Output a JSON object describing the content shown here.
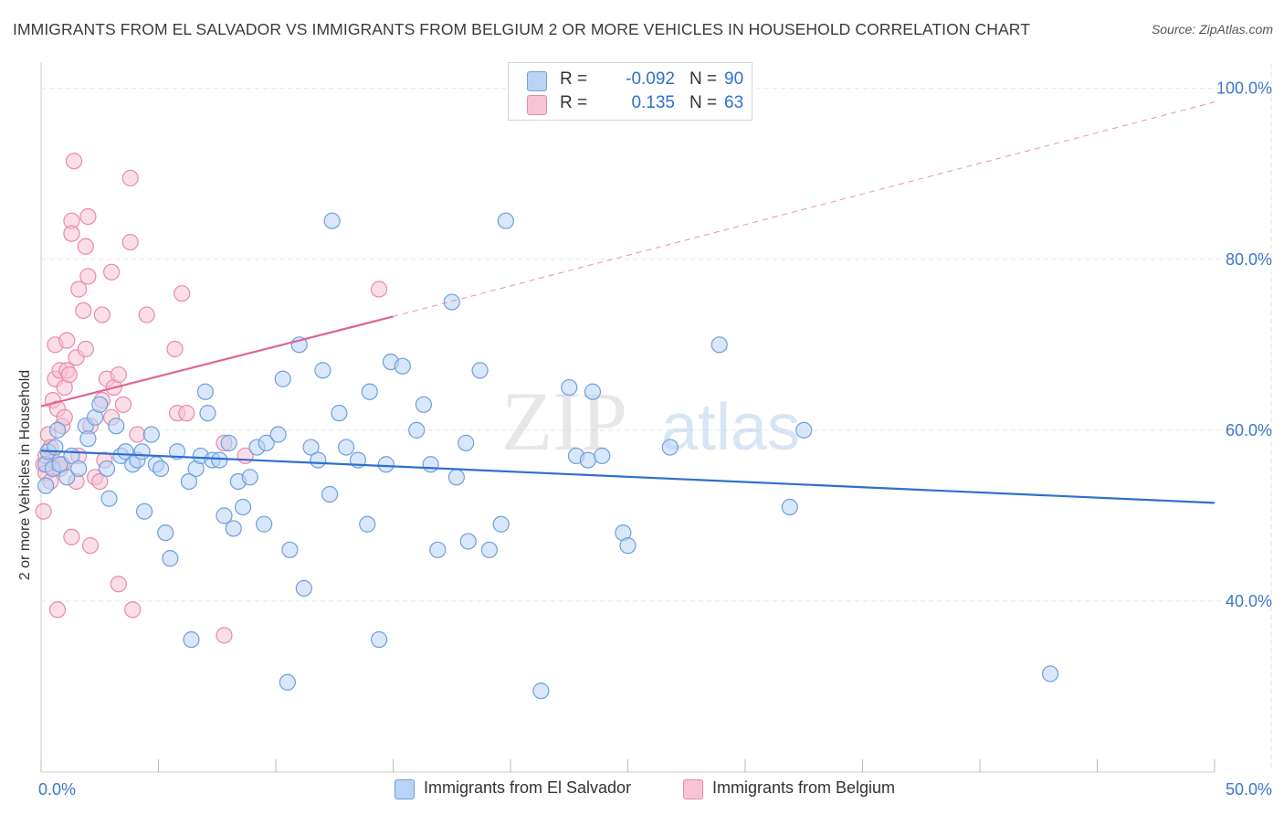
{
  "title": "IMMIGRANTS FROM EL SALVADOR VS IMMIGRANTS FROM BELGIUM 2 OR MORE VEHICLES IN HOUSEHOLD CORRELATION CHART",
  "source": "Source: ZipAtlas.com",
  "watermark": {
    "zip": "ZIP",
    "atlas": "atlas"
  },
  "legend": {
    "series1": {
      "r_label": "R =",
      "r_value": "-0.092",
      "n_label": "N =",
      "n_value": "90"
    },
    "series2": {
      "r_label": "R =",
      "r_value": "0.135",
      "n_label": "N =",
      "n_value": "63"
    }
  },
  "bottom_legend": {
    "series1": "Immigrants from El Salvador",
    "series2": "Immigrants from Belgium"
  },
  "colors": {
    "blue_fill": "#b8d3f5",
    "blue_stroke": "#6f9fdc",
    "blue_line": "#2e6fcf",
    "pink_fill": "#f8c3d4",
    "pink_stroke": "#e98aa9",
    "pink_line": "#e06592",
    "tick_text": "#3d77cc",
    "grid": "#e6e6e6"
  },
  "chart_data": {
    "type": "scatter",
    "title": "IMMIGRANTS FROM EL SALVADOR VS IMMIGRANTS FROM BELGIUM 2 OR MORE VEHICLES IN HOUSEHOLD CORRELATION CHART",
    "xlabel": "",
    "ylabel": "2 or more Vehicles in Household",
    "xlim": [
      0,
      50
    ],
    "ylim": [
      20,
      102
    ],
    "x_tick_labels": {
      "0": "0.0%",
      "50": "50.0%"
    },
    "y_ticks": [
      40,
      60,
      80,
      100
    ],
    "y_tick_labels": [
      "40.0%",
      "60.0%",
      "80.0%",
      "100.0%"
    ],
    "series": [
      {
        "name": "Immigrants from El Salvador",
        "r": -0.092,
        "n": 90,
        "trend": {
          "x": [
            0,
            50
          ],
          "y": [
            57.6,
            51.5
          ],
          "style": "solid"
        },
        "points": [
          [
            0.2,
            53.5
          ],
          [
            0.2,
            56.0
          ],
          [
            0.3,
            57.5
          ],
          [
            0.5,
            55.5
          ],
          [
            0.6,
            58.0
          ],
          [
            0.7,
            60.0
          ],
          [
            0.8,
            56.0
          ],
          [
            1.1,
            54.5
          ],
          [
            1.3,
            57.0
          ],
          [
            1.6,
            55.5
          ],
          [
            1.9,
            60.5
          ],
          [
            2.0,
            59.0
          ],
          [
            2.3,
            61.5
          ],
          [
            2.5,
            63.0
          ],
          [
            2.8,
            55.5
          ],
          [
            2.9,
            52.0
          ],
          [
            3.2,
            60.5
          ],
          [
            3.4,
            57.0
          ],
          [
            3.6,
            57.5
          ],
          [
            3.9,
            56.0
          ],
          [
            4.1,
            56.5
          ],
          [
            4.3,
            57.5
          ],
          [
            4.4,
            50.5
          ],
          [
            4.7,
            59.5
          ],
          [
            4.9,
            56.0
          ],
          [
            5.1,
            55.5
          ],
          [
            5.3,
            48.0
          ],
          [
            5.5,
            45.0
          ],
          [
            5.8,
            57.5
          ],
          [
            6.3,
            54.0
          ],
          [
            6.4,
            35.5
          ],
          [
            6.6,
            55.5
          ],
          [
            6.8,
            57.0
          ],
          [
            7.0,
            64.5
          ],
          [
            7.1,
            62.0
          ],
          [
            7.3,
            56.5
          ],
          [
            7.6,
            56.5
          ],
          [
            7.8,
            50.0
          ],
          [
            8.0,
            58.5
          ],
          [
            8.2,
            48.5
          ],
          [
            8.4,
            54.0
          ],
          [
            8.6,
            51.0
          ],
          [
            8.9,
            54.5
          ],
          [
            9.2,
            58.0
          ],
          [
            9.5,
            49.0
          ],
          [
            9.6,
            58.5
          ],
          [
            10.1,
            59.5
          ],
          [
            10.3,
            66.0
          ],
          [
            10.6,
            46.0
          ],
          [
            10.5,
            30.5
          ],
          [
            11.0,
            70.0
          ],
          [
            11.2,
            41.5
          ],
          [
            11.5,
            58.0
          ],
          [
            11.8,
            56.5
          ],
          [
            12.0,
            67.0
          ],
          [
            12.3,
            52.5
          ],
          [
            12.4,
            84.5
          ],
          [
            12.7,
            62.0
          ],
          [
            13.0,
            58.0
          ],
          [
            13.5,
            56.5
          ],
          [
            13.9,
            49.0
          ],
          [
            14.0,
            64.5
          ],
          [
            14.4,
            35.5
          ],
          [
            14.7,
            56.0
          ],
          [
            14.9,
            68.0
          ],
          [
            15.4,
            67.5
          ],
          [
            16.0,
            60.0
          ],
          [
            16.3,
            63.0
          ],
          [
            16.6,
            56.0
          ],
          [
            16.9,
            46.0
          ],
          [
            17.5,
            75.0
          ],
          [
            17.7,
            54.5
          ],
          [
            18.1,
            58.5
          ],
          [
            18.2,
            47.0
          ],
          [
            18.7,
            67.0
          ],
          [
            19.1,
            46.0
          ],
          [
            19.6,
            49.0
          ],
          [
            19.8,
            84.5
          ],
          [
            21.3,
            29.5
          ],
          [
            22.5,
            65.0
          ],
          [
            22.8,
            57.0
          ],
          [
            23.3,
            56.5
          ],
          [
            23.5,
            64.5
          ],
          [
            23.9,
            57.0
          ],
          [
            24.8,
            48.0
          ],
          [
            25.0,
            46.5
          ],
          [
            26.8,
            58.0
          ],
          [
            28.9,
            70.0
          ],
          [
            31.9,
            51.0
          ],
          [
            32.5,
            60.0
          ],
          [
            43.0,
            31.5
          ]
        ]
      },
      {
        "name": "Immigrants from Belgium",
        "r": 0.135,
        "n": 63,
        "trend": {
          "x": [
            0,
            15
          ],
          "y": [
            62.8,
            73.3
          ],
          "dashed_extension": {
            "x": [
              15,
              50
            ],
            "y": [
              73.3,
              98.4
            ]
          }
        },
        "points": [
          [
            0.1,
            50.5
          ],
          [
            0.1,
            56.0
          ],
          [
            0.2,
            55.0
          ],
          [
            0.3,
            57.5
          ],
          [
            0.3,
            59.5
          ],
          [
            0.4,
            54.0
          ],
          [
            0.5,
            56.5
          ],
          [
            0.5,
            63.5
          ],
          [
            0.6,
            66.0
          ],
          [
            0.6,
            70.0
          ],
          [
            0.7,
            39.0
          ],
          [
            0.7,
            62.5
          ],
          [
            0.8,
            67.0
          ],
          [
            0.8,
            55.5
          ],
          [
            0.9,
            60.5
          ],
          [
            0.9,
            56.0
          ],
          [
            1.0,
            61.5
          ],
          [
            1.0,
            65.0
          ],
          [
            1.1,
            70.5
          ],
          [
            1.1,
            67.0
          ],
          [
            1.2,
            66.5
          ],
          [
            1.3,
            47.5
          ],
          [
            1.3,
            84.5
          ],
          [
            1.3,
            83.0
          ],
          [
            1.4,
            91.5
          ],
          [
            1.5,
            68.5
          ],
          [
            1.5,
            54.0
          ],
          [
            1.6,
            76.5
          ],
          [
            1.6,
            57.0
          ],
          [
            1.8,
            74.0
          ],
          [
            1.9,
            69.5
          ],
          [
            1.9,
            81.5
          ],
          [
            2.0,
            85.0
          ],
          [
            2.0,
            78.0
          ],
          [
            2.1,
            60.5
          ],
          [
            2.1,
            46.5
          ],
          [
            2.3,
            54.5
          ],
          [
            2.5,
            54.0
          ],
          [
            2.6,
            63.5
          ],
          [
            2.6,
            73.5
          ],
          [
            2.7,
            56.5
          ],
          [
            2.8,
            66.0
          ],
          [
            3.0,
            61.5
          ],
          [
            3.0,
            78.5
          ],
          [
            3.1,
            65.0
          ],
          [
            3.3,
            66.5
          ],
          [
            3.3,
            42.0
          ],
          [
            3.5,
            63.0
          ],
          [
            3.8,
            89.5
          ],
          [
            3.8,
            82.0
          ],
          [
            3.9,
            39.0
          ],
          [
            4.1,
            59.5
          ],
          [
            4.5,
            73.5
          ],
          [
            5.7,
            69.5
          ],
          [
            5.8,
            62.0
          ],
          [
            6.0,
            76.0
          ],
          [
            6.2,
            62.0
          ],
          [
            7.8,
            36.0
          ],
          [
            7.8,
            58.5
          ],
          [
            8.7,
            57.0
          ],
          [
            14.4,
            76.5
          ],
          [
            0.2,
            57.0
          ],
          [
            0.4,
            58.0
          ]
        ]
      }
    ]
  }
}
